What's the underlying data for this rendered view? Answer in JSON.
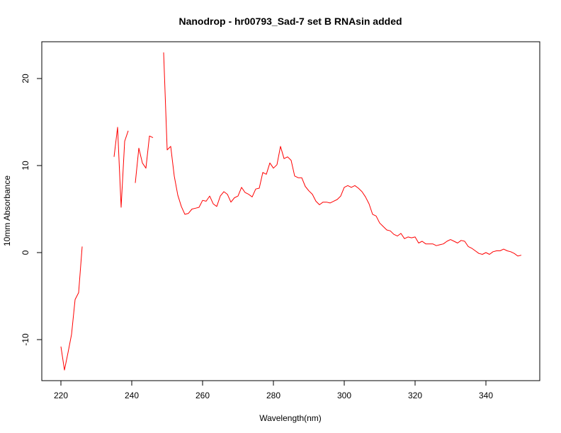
{
  "chart_data": {
    "type": "line",
    "title": "Nanodrop - hr00793_Sad-7 set B RNAsin added",
    "xlabel": "Wavelength(nm)",
    "ylabel": "10mm Absorbance",
    "xlim": [
      220,
      350
    ],
    "ylim": [
      -14.5,
      24.5
    ],
    "x_ticks": [
      220,
      240,
      260,
      280,
      300,
      320,
      340
    ],
    "y_ticks": [
      -10,
      0,
      10,
      20
    ],
    "grid": false,
    "legend": "none",
    "series": [
      {
        "color": "#ff0000",
        "points": [
          [
            220,
            -10.8
          ],
          [
            221,
            -13.5
          ],
          [
            222,
            -11.5
          ],
          [
            223,
            -9.4
          ],
          [
            224,
            -5.4
          ],
          [
            225,
            -4.6
          ],
          [
            226,
            0.7
          ],
          null,
          [
            235,
            11.0
          ],
          [
            236,
            14.4
          ],
          [
            237,
            5.2
          ],
          [
            238,
            12.8
          ],
          [
            239,
            14.0
          ],
          null,
          [
            241,
            8.0
          ],
          [
            242,
            12.0
          ],
          [
            243,
            10.3
          ],
          [
            244,
            9.7
          ],
          [
            245,
            13.4
          ],
          [
            246,
            13.2
          ],
          null,
          [
            249,
            23.0
          ],
          [
            250,
            11.8
          ],
          [
            251,
            12.2
          ],
          [
            252,
            8.8
          ],
          [
            253,
            6.6
          ],
          [
            254,
            5.3
          ],
          [
            255,
            4.4
          ],
          [
            256,
            4.5
          ],
          [
            257,
            5.0
          ],
          [
            258,
            5.1
          ],
          [
            259,
            5.2
          ],
          [
            260,
            6.0
          ],
          [
            261,
            5.9
          ],
          [
            262,
            6.5
          ],
          [
            263,
            5.6
          ],
          [
            264,
            5.3
          ],
          [
            265,
            6.5
          ],
          [
            266,
            7.0
          ],
          [
            267,
            6.7
          ],
          [
            268,
            5.8
          ],
          [
            269,
            6.3
          ],
          [
            270,
            6.5
          ],
          [
            271,
            7.5
          ],
          [
            272,
            6.9
          ],
          [
            273,
            6.7
          ],
          [
            274,
            6.4
          ],
          [
            275,
            7.3
          ],
          [
            276,
            7.4
          ],
          [
            277,
            9.2
          ],
          [
            278,
            9.0
          ],
          [
            279,
            10.3
          ],
          [
            280,
            9.7
          ],
          [
            281,
            10.1
          ],
          [
            282,
            12.2
          ],
          [
            283,
            10.8
          ],
          [
            284,
            11.0
          ],
          [
            285,
            10.6
          ],
          [
            286,
            8.8
          ],
          [
            287,
            8.6
          ],
          [
            288,
            8.6
          ],
          [
            289,
            7.6
          ],
          [
            290,
            7.1
          ],
          [
            291,
            6.7
          ],
          [
            292,
            5.9
          ],
          [
            293,
            5.5
          ],
          [
            294,
            5.8
          ],
          [
            295,
            5.8
          ],
          [
            296,
            5.7
          ],
          [
            297,
            5.9
          ],
          [
            298,
            6.1
          ],
          [
            299,
            6.5
          ],
          [
            300,
            7.5
          ],
          [
            301,
            7.7
          ],
          [
            302,
            7.5
          ],
          [
            303,
            7.7
          ],
          [
            304,
            7.4
          ],
          [
            305,
            7.0
          ],
          [
            306,
            6.4
          ],
          [
            307,
            5.6
          ],
          [
            308,
            4.4
          ],
          [
            309,
            4.2
          ],
          [
            310,
            3.4
          ],
          [
            311,
            3.0
          ],
          [
            312,
            2.6
          ],
          [
            313,
            2.5
          ],
          [
            314,
            2.1
          ],
          [
            315,
            1.9
          ],
          [
            316,
            2.2
          ],
          [
            317,
            1.6
          ],
          [
            318,
            1.8
          ],
          [
            319,
            1.7
          ],
          [
            320,
            1.8
          ],
          [
            321,
            1.1
          ],
          [
            322,
            1.3
          ],
          [
            323,
            1.0
          ],
          [
            324,
            1.0
          ],
          [
            325,
            1.0
          ],
          [
            326,
            0.8
          ],
          [
            327,
            0.9
          ],
          [
            328,
            1.0
          ],
          [
            329,
            1.3
          ],
          [
            330,
            1.5
          ],
          [
            331,
            1.3
          ],
          [
            332,
            1.1
          ],
          [
            333,
            1.4
          ],
          [
            334,
            1.3
          ],
          [
            335,
            0.7
          ],
          [
            336,
            0.5
          ],
          [
            337,
            0.2
          ],
          [
            338,
            -0.1
          ],
          [
            339,
            -0.2
          ],
          [
            340,
            0.0
          ],
          [
            341,
            -0.2
          ],
          [
            342,
            0.1
          ],
          [
            343,
            0.2
          ],
          [
            344,
            0.2
          ],
          [
            345,
            0.4
          ],
          [
            346,
            0.2
          ],
          [
            347,
            0.1
          ],
          [
            348,
            -0.1
          ],
          [
            349,
            -0.4
          ],
          [
            350,
            -0.3
          ]
        ]
      }
    ]
  }
}
